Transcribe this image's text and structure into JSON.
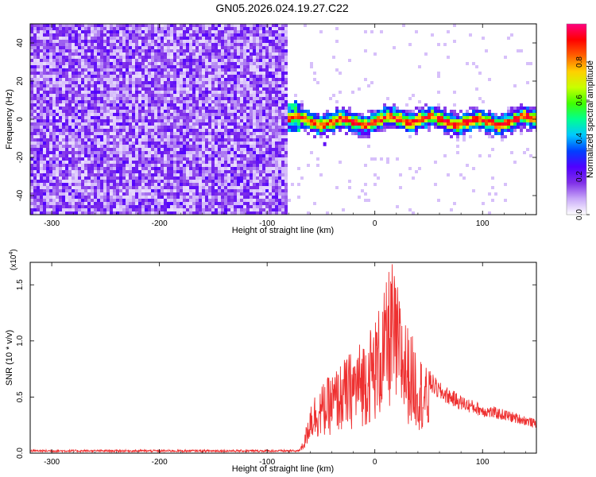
{
  "title": "GN05.2026.024.19.27.C22",
  "chart_data": [
    {
      "type": "heatmap",
      "xlabel": "Height of straight line (km)",
      "ylabel": "Frequency (Hz)",
      "xlim": [
        -320,
        150
      ],
      "ylim": [
        -50,
        50
      ],
      "xticks": [
        -300,
        -200,
        -100,
        0,
        100
      ],
      "yticks": [
        -40,
        -20,
        0,
        20,
        40
      ],
      "colorbar": {
        "label": "Normalized spectral amplitude",
        "range": [
          0,
          1
        ],
        "ticks": [
          "0.0",
          "0.2",
          "0.4",
          "0.6",
          "0.8"
        ],
        "tick_values": [
          0.0,
          0.2,
          0.4,
          0.6,
          0.8
        ],
        "colors": [
          "#ffffff",
          "#c8a8f8",
          "#8030e8",
          "#5000ff",
          "#0040ff",
          "#00c8ff",
          "#00ff90",
          "#40ff00",
          "#c8ff00",
          "#ffd000",
          "#ff6000",
          "#ff0000",
          "#ff0080"
        ]
      },
      "regions": [
        {
          "name": "noise",
          "x_range": [
            -320,
            -82
          ],
          "y_range": [
            -50,
            50
          ],
          "amplitude": [
            0.05,
            0.25
          ]
        },
        {
          "name": "signal",
          "x_range": [
            -82,
            150
          ],
          "center_freq": 0,
          "bandwidth": [
            -6,
            6
          ],
          "peak_amplitude": 0.95
        }
      ]
    },
    {
      "type": "line",
      "xlabel": "Height of straight line (km)",
      "ylabel": "SNR (10 * v/v)",
      "y_scale_label": "(x10",
      "y_scale_exp": "4",
      "xlim": [
        -320,
        150
      ],
      "ylim": [
        0,
        1.7
      ],
      "xticks": [
        -300,
        -200,
        -100,
        0,
        100
      ],
      "yticks": [
        "0.0",
        "0.5",
        "1.0",
        "1.5"
      ],
      "ytick_values": [
        0.0,
        0.5,
        1.0,
        1.5
      ],
      "color": "#ee3030",
      "envelope": {
        "x": [
          -320,
          -70,
          -65,
          -60,
          -50,
          -40,
          -30,
          -20,
          -10,
          0,
          10,
          15,
          20,
          30,
          40,
          50,
          60,
          80,
          100,
          120,
          140,
          150
        ],
        "y": [
          0.02,
          0.02,
          0.15,
          0.45,
          0.55,
          0.65,
          0.75,
          0.85,
          0.95,
          1.1,
          1.35,
          1.6,
          1.4,
          1.05,
          0.85,
          0.65,
          0.55,
          0.45,
          0.38,
          0.34,
          0.29,
          0.26
        ]
      }
    }
  ]
}
